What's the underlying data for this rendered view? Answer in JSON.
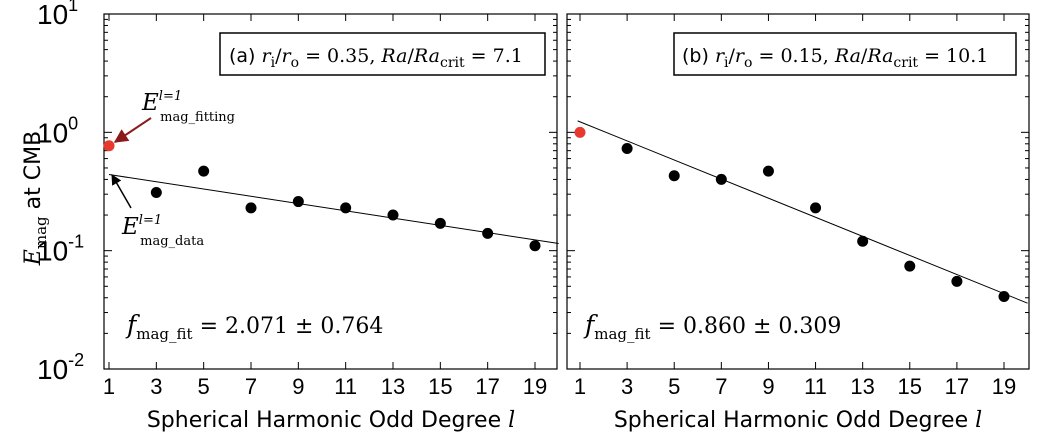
{
  "colors": {
    "data_point": "#000000",
    "fitting_point": "#e8392f",
    "fitting_arrow": "#8b1a1a",
    "data_arrow": "#000000",
    "axis": "#000000"
  },
  "chart_data": [
    {
      "type": "scatter",
      "panel": "a",
      "scale": {
        "x": "linear",
        "y": "log"
      },
      "xlim": [
        0.5,
        20
      ],
      "ylim": [
        0.01,
        10
      ],
      "xticks": [
        "1",
        "3",
        "5",
        "7",
        "9",
        "11",
        "13",
        "15",
        "17",
        "19"
      ],
      "yticks": [
        {
          "base": "10",
          "exp": "-2",
          "value": 0.01
        },
        {
          "base": "10",
          "exp": "-1",
          "value": 0.1
        },
        {
          "base": "10",
          "exp": "0",
          "value": 1
        },
        {
          "base": "10",
          "exp": "1",
          "value": 10
        }
      ],
      "xlabel": {
        "text": "Spherical Harmonic Odd Degree ",
        "var": "l"
      },
      "ylabel": {
        "var": "E",
        "sub": "mag",
        "text": " at CMB"
      },
      "legend_box": {
        "prefix": "(a) ",
        "r1": "r",
        "r1_sub": "i",
        "slash": "/",
        "r2": "r",
        "r2_sub": "o",
        "eq1": " = 0.35, ",
        "ra": "Ra",
        "slash2": "/",
        "ra2": "Ra",
        "ra2_sub": "crit",
        "eq2": " = 7.1"
      },
      "fit_text": {
        "f": "f",
        "sub": "mag_fit",
        "value": " = 2.071 ± 0.764"
      },
      "series": [
        {
          "x": [
            3,
            5,
            7,
            9,
            11,
            13,
            15,
            17,
            19
          ],
          "y": [
            0.31,
            0.47,
            0.23,
            0.26,
            0.23,
            0.2,
            0.17,
            0.14,
            0.11
          ]
        }
      ],
      "fitting_point": {
        "x": 1,
        "y": 0.77
      },
      "fit_line": {
        "x": [
          1,
          20
        ],
        "y": [
          0.44,
          0.115
        ]
      },
      "annotations": [
        {
          "var": "E",
          "sup": "l=1",
          "sub": "mag_fitting",
          "target": "fitting_point"
        },
        {
          "var": "E",
          "sup": "l=1",
          "sub": "mag_data",
          "target": "fit_line_start"
        }
      ]
    },
    {
      "type": "scatter",
      "panel": "b",
      "scale": {
        "x": "linear",
        "y": "log"
      },
      "xlim": [
        0.5,
        20
      ],
      "ylim": [
        0.01,
        10
      ],
      "xticks": [
        "1",
        "3",
        "5",
        "7",
        "9",
        "11",
        "13",
        "15",
        "17",
        "19"
      ],
      "xlabel": {
        "text": "Spherical Harmonic Odd Degree ",
        "var": "l"
      },
      "legend_box": {
        "prefix": "(b) ",
        "r1": "r",
        "r1_sub": "i",
        "slash": "/",
        "r2": "r",
        "r2_sub": "o",
        "eq1": " = 0.15, ",
        "ra": "Ra",
        "slash2": "/",
        "ra2": "Ra",
        "ra2_sub": "crit",
        "eq2": " = 10.1"
      },
      "fit_text": {
        "f": "f",
        "sub": "mag_fit",
        "value": " = 0.860 ± 0.309"
      },
      "series": [
        {
          "x": [
            3,
            5,
            7,
            9,
            11,
            13,
            15,
            17,
            19
          ],
          "y": [
            0.73,
            0.43,
            0.4,
            0.47,
            0.23,
            0.12,
            0.074,
            0.055,
            0.041
          ]
        }
      ],
      "fitting_point": {
        "x": 1,
        "y": 1.0
      },
      "fit_line": {
        "x": [
          0.9,
          20
        ],
        "y": [
          1.25,
          0.036
        ]
      }
    }
  ]
}
